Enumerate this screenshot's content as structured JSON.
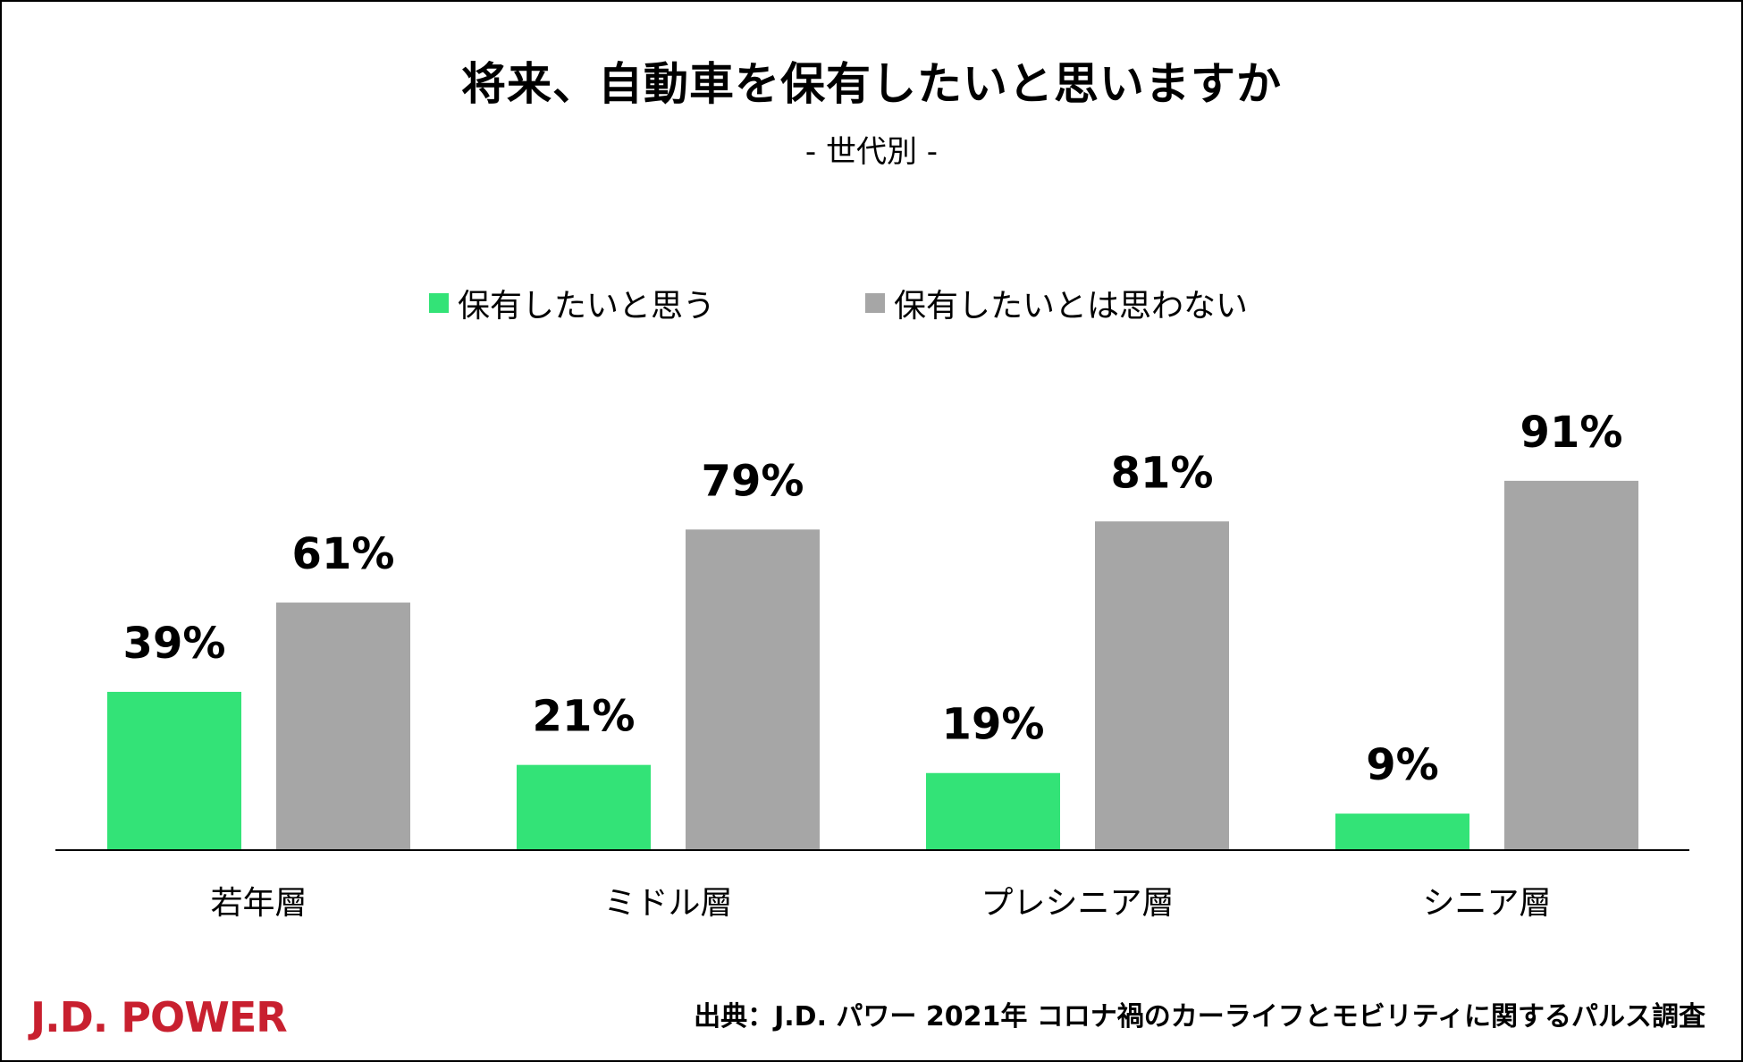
{
  "chart_data": {
    "type": "bar",
    "title": "将来、自動車を保有したいと思いますか",
    "subtitle": "- 世代別 -",
    "categories": [
      "若年層",
      "ミドル層",
      "プレシニア層",
      "シニア層"
    ],
    "series": [
      {
        "name": "保有したいと思う",
        "values": [
          39,
          21,
          19,
          9
        ],
        "labels": [
          "39%",
          "21%",
          "19%",
          "9%"
        ],
        "color": "#33e377"
      },
      {
        "name": "保有したいとは思わない",
        "values": [
          61,
          79,
          81,
          91
        ],
        "labels": [
          "61%",
          "79%",
          "81%",
          "91%"
        ],
        "color": "#a6a6a6"
      }
    ],
    "ylim": [
      0,
      100
    ],
    "grid": false,
    "legend_position": "top-center",
    "xlabel": "",
    "ylabel": ""
  },
  "brand": {
    "name": "J.D. POWER",
    "color": "#c8202f"
  },
  "source": "出典：J.D. パワー 2021年 コロナ禍のカーライフとモビリティに関するパルス調査"
}
